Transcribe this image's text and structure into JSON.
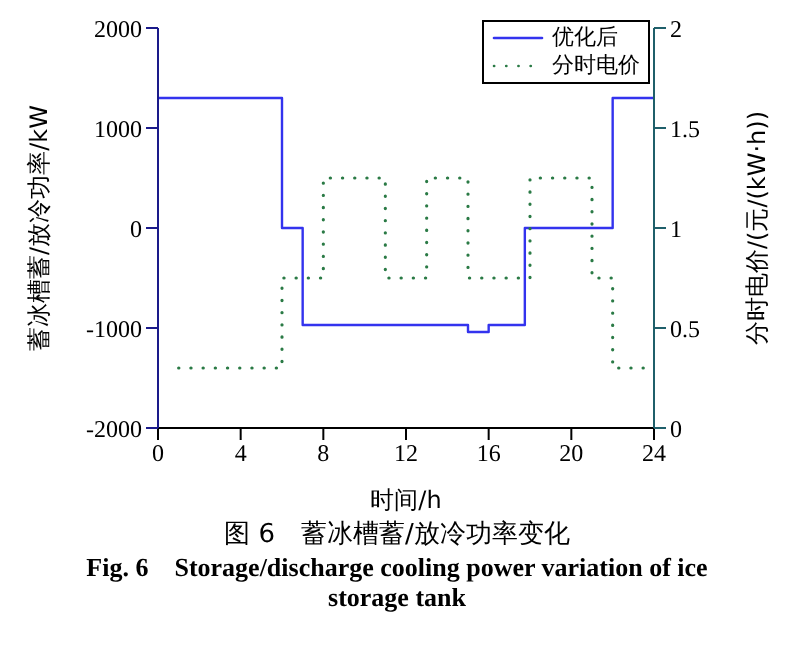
{
  "chart_data": {
    "type": "step",
    "title": "图 6　蓄冰槽蓄/放冷功率变化",
    "subtitle": "Fig. 6　Storage/discharge cooling power variation of ice storage tank",
    "xlabel": "时间/h",
    "ylabel": "蓄冰槽蓄/放冷功率/kW",
    "y2label": "分时电价/(元/(kW·h))",
    "series": [
      {
        "name": "优化后",
        "color": "#3333ee",
        "line_style": "solid",
        "x": [
          0,
          6,
          7,
          15,
          16,
          17.75,
          22,
          24
        ],
        "values": [
          1300,
          0,
          -970,
          -1040,
          -970,
          0,
          1300,
          1300
        ]
      },
      {
        "name": "分时电价",
        "color": "#2a7a45",
        "line_style": "dotted",
        "axis": "y2",
        "x": [
          1,
          6,
          8,
          11,
          13,
          15,
          18,
          21,
          22,
          23.5
        ],
        "values": [
          0.3,
          0.75,
          1.25,
          0.75,
          1.25,
          0.75,
          1.25,
          0.75,
          0.3,
          0.3
        ]
      }
    ],
    "xlim": [
      0,
      24
    ],
    "xticks": [
      0,
      4,
      8,
      12,
      16,
      20,
      24
    ],
    "ylim": [
      -2000,
      2000
    ],
    "yticks": [
      -2000,
      -1000,
      0,
      1000,
      2000
    ],
    "y2lim": [
      0,
      2
    ],
    "y2ticks": [
      0,
      0.5,
      1,
      1.5,
      2
    ],
    "grid": false,
    "legend": "top right",
    "marker": "none"
  }
}
